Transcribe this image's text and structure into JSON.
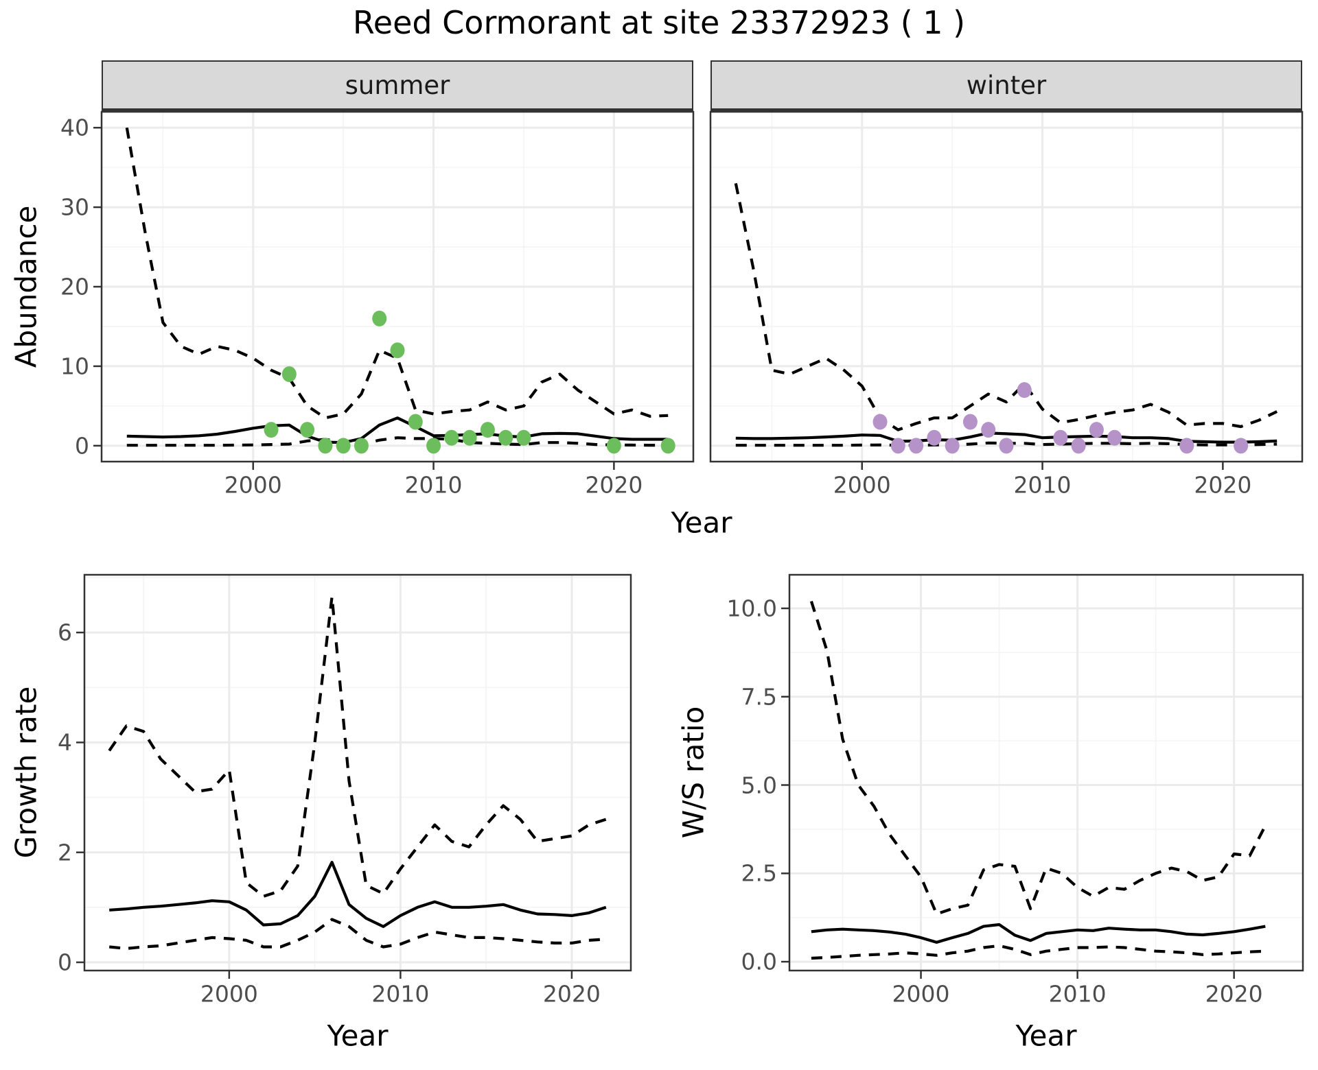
{
  "title": "Reed Cormorant at site 23372923 ( 1 )",
  "labels": {
    "abundance": "Abundance",
    "growth_rate": "Growth rate",
    "ws_ratio": "W/S ratio",
    "year": "Year"
  },
  "colors": {
    "obs_summer": "#6cbd5b",
    "obs_winter": "#b592c8",
    "line": "#000000",
    "grid_major": "#ebebeb",
    "grid_minor": "#f4f4f4",
    "strip_bg": "#d9d9d9",
    "panel_border": "#333333",
    "tick_text": "#4d4d4d"
  },
  "chart_data": [
    {
      "id": "abundance-summer",
      "type": "line+scatter",
      "facet_label": "summer",
      "ylabel": "Abundance",
      "xlabel": "Year",
      "xlim": [
        1991.6,
        2024.4
      ],
      "ylim": [
        -2,
        42
      ],
      "xticks": [
        {
          "v": 2000,
          "label": "2000"
        },
        {
          "v": 2010,
          "label": "2010"
        },
        {
          "v": 2020,
          "label": "2020"
        }
      ],
      "yticks": [
        {
          "v": 0,
          "label": "0"
        },
        {
          "v": 10,
          "label": "10"
        },
        {
          "v": 20,
          "label": "20"
        },
        {
          "v": 30,
          "label": "30"
        },
        {
          "v": 40,
          "label": "40"
        }
      ],
      "x": [
        1993,
        1994,
        1995,
        1996,
        1997,
        1998,
        1999,
        2000,
        2001,
        2002,
        2003,
        2004,
        2005,
        2006,
        2007,
        2008,
        2009,
        2010,
        2011,
        2012,
        2013,
        2014,
        2015,
        2016,
        2017,
        2018,
        2019,
        2020,
        2021,
        2022,
        2023
      ],
      "series": [
        {
          "name": "upper_95ci",
          "style": "dashed",
          "values": [
            40,
            27,
            15.5,
            12.5,
            11.5,
            12.5,
            12,
            11,
            9.5,
            8.5,
            5,
            3.5,
            4,
            6.5,
            12,
            11,
            4.5,
            4,
            4.3,
            4.5,
            5.5,
            4.5,
            5,
            8,
            9,
            7,
            5.5,
            4,
            4.5,
            3.7,
            3.8
          ]
        },
        {
          "name": "median",
          "style": "solid",
          "values": [
            1.2,
            1.15,
            1.1,
            1.15,
            1.25,
            1.45,
            1.8,
            2.2,
            2.5,
            2.6,
            1.2,
            0.45,
            0.4,
            0.9,
            2.6,
            3.5,
            2.4,
            1.25,
            1.3,
            1.4,
            1.5,
            1.2,
            1.1,
            1.5,
            1.55,
            1.5,
            1.2,
            0.9,
            0.8,
            0.8,
            0.8
          ]
        },
        {
          "name": "lower_95ci",
          "style": "dashed",
          "values": [
            0.05,
            0.05,
            0.05,
            0.05,
            0.05,
            0.05,
            0.08,
            0.1,
            0.15,
            0.2,
            0.6,
            0.8,
            0.4,
            0.2,
            0.7,
            1.0,
            0.9,
            0.9,
            0.8,
            0.4,
            0.3,
            0.2,
            0.15,
            0.4,
            0.4,
            0.3,
            0.15,
            0.1,
            0.08,
            0.06,
            0.06
          ]
        }
      ],
      "observations": [
        [
          2001,
          2
        ],
        [
          2002,
          9
        ],
        [
          2003,
          2
        ],
        [
          2004,
          0
        ],
        [
          2005,
          0
        ],
        [
          2006,
          0
        ],
        [
          2007,
          16
        ],
        [
          2008,
          12
        ],
        [
          2009,
          3
        ],
        [
          2010,
          0
        ],
        [
          2011,
          1
        ],
        [
          2012,
          1
        ],
        [
          2013,
          2
        ],
        [
          2014,
          1
        ],
        [
          2015,
          1
        ],
        [
          2020,
          0
        ],
        [
          2023,
          0
        ]
      ],
      "obs_color": "#6cbd5b"
    },
    {
      "id": "abundance-winter",
      "type": "line+scatter",
      "facet_label": "winter",
      "ylabel": "Abundance",
      "xlabel": "Year",
      "xlim": [
        1991.6,
        2024.4
      ],
      "ylim": [
        -2,
        42
      ],
      "xticks": [
        {
          "v": 2000,
          "label": "2000"
        },
        {
          "v": 2010,
          "label": "2010"
        },
        {
          "v": 2020,
          "label": "2020"
        }
      ],
      "yticks": [
        {
          "v": 0,
          "label": "0"
        },
        {
          "v": 10,
          "label": "10"
        },
        {
          "v": 20,
          "label": "20"
        },
        {
          "v": 30,
          "label": "30"
        },
        {
          "v": 40,
          "label": "40"
        }
      ],
      "x": [
        1993,
        1994,
        1995,
        1996,
        1997,
        1998,
        1999,
        2000,
        2001,
        2002,
        2003,
        2004,
        2005,
        2006,
        2007,
        2008,
        2009,
        2010,
        2011,
        2012,
        2013,
        2014,
        2015,
        2016,
        2017,
        2018,
        2019,
        2020,
        2021,
        2022,
        2023
      ],
      "series": [
        {
          "name": "upper_95ci",
          "style": "dashed",
          "values": [
            33,
            22,
            9.5,
            9,
            10,
            11,
            9.5,
            7.5,
            3.5,
            2,
            2.8,
            3.5,
            3.5,
            5,
            6.5,
            5.5,
            7.8,
            4.6,
            2.9,
            3.3,
            3.8,
            4.2,
            4.5,
            5.2,
            4.2,
            2.6,
            2.8,
            2.8,
            2.4,
            3.2,
            4.3
          ]
        },
        {
          "name": "median",
          "style": "solid",
          "values": [
            0.95,
            0.9,
            0.9,
            0.95,
            1.0,
            1.1,
            1.2,
            1.35,
            1.3,
            0.55,
            0.6,
            0.75,
            0.7,
            1.1,
            1.6,
            1.5,
            1.4,
            1.0,
            1.1,
            1.15,
            1.2,
            1.15,
            1.0,
            1.0,
            0.9,
            0.55,
            0.5,
            0.45,
            0.45,
            0.5,
            0.6
          ]
        },
        {
          "name": "lower_95ci",
          "style": "dashed",
          "values": [
            0.05,
            0.05,
            0.05,
            0.05,
            0.05,
            0.05,
            0.05,
            0.08,
            0.1,
            0.05,
            0.05,
            0.1,
            0.1,
            0.2,
            0.35,
            0.3,
            0.3,
            0.15,
            0.2,
            0.25,
            0.3,
            0.3,
            0.25,
            0.3,
            0.25,
            0.15,
            0.1,
            0.1,
            0.1,
            0.15,
            0.2
          ]
        }
      ],
      "observations": [
        [
          2001,
          3
        ],
        [
          2002,
          0
        ],
        [
          2003,
          0
        ],
        [
          2004,
          1
        ],
        [
          2005,
          0
        ],
        [
          2006,
          3
        ],
        [
          2007,
          2
        ],
        [
          2008,
          0
        ],
        [
          2009,
          7
        ],
        [
          2011,
          1
        ],
        [
          2012,
          0
        ],
        [
          2013,
          2
        ],
        [
          2014,
          1
        ],
        [
          2018,
          0
        ],
        [
          2021,
          0
        ]
      ],
      "obs_color": "#b592c8"
    },
    {
      "id": "growth-rate",
      "type": "line",
      "facet_label": "",
      "ylabel": "Growth rate",
      "xlabel": "Year",
      "xlim": [
        1991.55,
        2023.45
      ],
      "ylim": [
        -0.15,
        7.05
      ],
      "xticks": [
        {
          "v": 2000,
          "label": "2000"
        },
        {
          "v": 2010,
          "label": "2010"
        },
        {
          "v": 2020,
          "label": "2020"
        }
      ],
      "yticks": [
        {
          "v": 0,
          "label": "0"
        },
        {
          "v": 2,
          "label": "2"
        },
        {
          "v": 4,
          "label": "4"
        },
        {
          "v": 6,
          "label": "6"
        }
      ],
      "x": [
        1993,
        1994,
        1995,
        1996,
        1997,
        1998,
        1999,
        2000,
        2001,
        2002,
        2003,
        2004,
        2005,
        2006,
        2007,
        2008,
        2009,
        2010,
        2011,
        2012,
        2013,
        2014,
        2015,
        2016,
        2017,
        2018,
        2019,
        2020,
        2021,
        2022
      ],
      "series": [
        {
          "name": "upper_95ci",
          "style": "dashed",
          "values": [
            3.85,
            4.3,
            4.2,
            3.7,
            3.4,
            3.1,
            3.15,
            3.5,
            1.45,
            1.2,
            1.3,
            1.75,
            4.0,
            6.65,
            3.3,
            1.4,
            1.25,
            1.7,
            2.1,
            2.5,
            2.2,
            2.1,
            2.5,
            2.85,
            2.6,
            2.2,
            2.25,
            2.3,
            2.5,
            2.6
          ]
        },
        {
          "name": "median",
          "style": "solid",
          "values": [
            0.95,
            0.97,
            1.0,
            1.02,
            1.05,
            1.08,
            1.12,
            1.1,
            0.95,
            0.68,
            0.7,
            0.85,
            1.2,
            1.82,
            1.05,
            0.8,
            0.65,
            0.85,
            1.0,
            1.1,
            1.0,
            1.0,
            1.02,
            1.05,
            0.95,
            0.88,
            0.87,
            0.85,
            0.9,
            1.0
          ]
        },
        {
          "name": "lower_95ci",
          "style": "dashed",
          "values": [
            0.28,
            0.25,
            0.28,
            0.3,
            0.35,
            0.4,
            0.45,
            0.43,
            0.4,
            0.28,
            0.28,
            0.4,
            0.55,
            0.78,
            0.65,
            0.4,
            0.28,
            0.33,
            0.45,
            0.55,
            0.5,
            0.45,
            0.45,
            0.43,
            0.4,
            0.37,
            0.35,
            0.35,
            0.4,
            0.42
          ]
        }
      ],
      "observations": [],
      "obs_color": "#000000"
    },
    {
      "id": "ws-ratio",
      "type": "line",
      "facet_label": "",
      "ylabel": "W/S ratio",
      "xlabel": "Year",
      "xlim": [
        1991.6,
        2024.4
      ],
      "ylim": [
        -0.25,
        10.95
      ],
      "xticks": [
        {
          "v": 2000,
          "label": "2000"
        },
        {
          "v": 2010,
          "label": "2010"
        },
        {
          "v": 2020,
          "label": "2020"
        }
      ],
      "yticks": [
        {
          "v": 0,
          "label": "0.0"
        },
        {
          "v": 2.5,
          "label": "2.5"
        },
        {
          "v": 5,
          "label": "5.0"
        },
        {
          "v": 7.5,
          "label": "7.5"
        },
        {
          "v": 10,
          "label": "10.0"
        }
      ],
      "x": [
        1993,
        1994,
        1995,
        1996,
        1997,
        1998,
        1999,
        2000,
        2001,
        2002,
        2003,
        2004,
        2005,
        2006,
        2007,
        2008,
        2009,
        2010,
        2011,
        2012,
        2013,
        2014,
        2015,
        2016,
        2017,
        2018,
        2019,
        2020,
        2021,
        2022
      ],
      "series": [
        {
          "name": "upper_95ci",
          "style": "dashed",
          "values": [
            10.2,
            8.8,
            6.3,
            5.0,
            4.4,
            3.6,
            3.0,
            2.4,
            1.35,
            1.5,
            1.6,
            2.6,
            2.75,
            2.7,
            1.5,
            2.65,
            2.5,
            2.1,
            1.85,
            2.1,
            2.05,
            2.3,
            2.5,
            2.65,
            2.55,
            2.3,
            2.4,
            3.05,
            3.0,
            3.85
          ]
        },
        {
          "name": "median",
          "style": "solid",
          "values": [
            0.85,
            0.9,
            0.92,
            0.9,
            0.88,
            0.84,
            0.78,
            0.68,
            0.55,
            0.68,
            0.8,
            1.0,
            1.05,
            0.75,
            0.6,
            0.8,
            0.85,
            0.9,
            0.88,
            0.95,
            0.92,
            0.9,
            0.9,
            0.85,
            0.78,
            0.76,
            0.8,
            0.85,
            0.92,
            1.0
          ]
        },
        {
          "name": "lower_95ci",
          "style": "dashed",
          "values": [
            0.1,
            0.12,
            0.15,
            0.18,
            0.2,
            0.22,
            0.25,
            0.22,
            0.18,
            0.25,
            0.3,
            0.4,
            0.45,
            0.35,
            0.2,
            0.3,
            0.35,
            0.4,
            0.4,
            0.42,
            0.4,
            0.35,
            0.3,
            0.28,
            0.25,
            0.2,
            0.22,
            0.25,
            0.28,
            0.3
          ]
        }
      ],
      "observations": [],
      "obs_color": "#000000"
    }
  ]
}
